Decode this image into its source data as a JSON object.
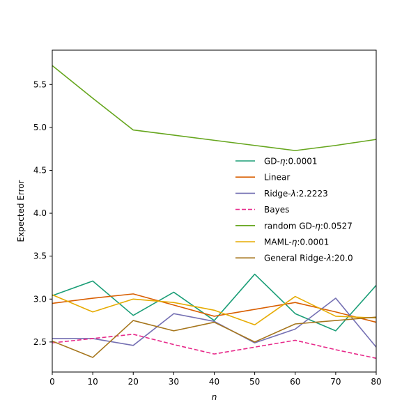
{
  "chart_data": {
    "type": "line",
    "xlabel": "n",
    "ylabel": "Expected Error",
    "xlim": [
      0,
      80
    ],
    "ylim": [
      2.15,
      5.9
    ],
    "xticks": [
      0,
      10,
      20,
      30,
      40,
      50,
      60,
      70,
      80
    ],
    "yticks": [
      2.5,
      3.0,
      3.5,
      4.0,
      4.5,
      5.0,
      5.5
    ],
    "ytick_labels": [
      "2.5",
      "3.0",
      "3.5",
      "4.0",
      "4.5",
      "5.0",
      "5.5"
    ],
    "grid": false,
    "legend_position": "center-right",
    "x": [
      0,
      10,
      20,
      30,
      40,
      50,
      60,
      70,
      80
    ],
    "series": [
      {
        "name_parts": [
          "GD-",
          "η",
          ":0.0001"
        ],
        "color": "#1b9e77",
        "dashed": false,
        "values": [
          3.04,
          3.21,
          2.81,
          3.08,
          2.75,
          3.29,
          2.83,
          2.63,
          3.16
        ]
      },
      {
        "name_parts": [
          "Linear",
          "",
          ""
        ],
        "color": "#d95f02",
        "dashed": false,
        "values": [
          2.95,
          3.01,
          3.06,
          2.93,
          2.8,
          2.88,
          2.96,
          2.85,
          2.73
        ]
      },
      {
        "name_parts": [
          "Ridge-",
          "λ",
          ":2.2223"
        ],
        "color": "#7570b3",
        "dashed": false,
        "values": [
          2.54,
          2.54,
          2.46,
          2.83,
          2.74,
          2.49,
          2.65,
          3.01,
          2.44
        ]
      },
      {
        "name_parts": [
          "Bayes",
          "",
          ""
        ],
        "color": "#e7298a",
        "dashed": true,
        "values": [
          2.49,
          2.54,
          2.59,
          2.47,
          2.36,
          2.44,
          2.52,
          2.41,
          2.31
        ]
      },
      {
        "name_parts": [
          "random GD-",
          "η",
          ":0.0527"
        ],
        "color": "#66a61e",
        "dashed": false,
        "values": [
          5.72,
          5.34,
          4.97,
          4.91,
          4.85,
          4.79,
          4.73,
          4.79,
          4.86
        ]
      },
      {
        "name_parts": [
          "MAML-",
          "η",
          ":0.0001"
        ],
        "color": "#e6ab02",
        "dashed": false,
        "values": [
          3.05,
          2.85,
          3.0,
          2.96,
          2.87,
          2.7,
          3.03,
          2.8,
          2.78
        ]
      },
      {
        "name_parts": [
          "General Ridge-",
          "λ",
          ":20.0"
        ],
        "color": "#a6761d",
        "dashed": false,
        "values": [
          2.51,
          2.32,
          2.75,
          2.63,
          2.73,
          2.5,
          2.71,
          2.75,
          2.79
        ]
      }
    ]
  }
}
